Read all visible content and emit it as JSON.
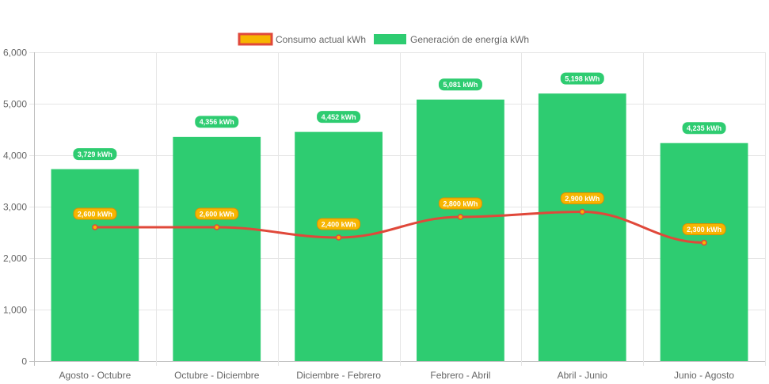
{
  "chart_data": {
    "type": "bar",
    "title": "",
    "xlabel": "",
    "ylabel": "",
    "ylim": [
      0,
      6000
    ],
    "y_ticks": [
      "0",
      "1,000",
      "2,000",
      "3,000",
      "4,000",
      "5,000",
      "6,000"
    ],
    "grid": true,
    "legend_position": "top-center",
    "categories": [
      "Agosto - Octubre",
      "Octubre - Diciembre",
      "Diciembre - Febrero",
      "Febrero - Abril",
      "Abril - Junio",
      "Junio - Agosto"
    ],
    "series": [
      {
        "name": "Consumo actual kWh",
        "type": "line",
        "values": [
          2600,
          2600,
          2400,
          2800,
          2900,
          2300
        ],
        "labels": [
          "2,600 kWh",
          "2,600 kWh",
          "2,400 kWh",
          "2,800 kWh",
          "2,900 kWh",
          "2,300 kWh"
        ],
        "color": "#e0483a",
        "point_color": "#f7b500"
      },
      {
        "name": "Generación de energía kWh",
        "type": "bar",
        "values": [
          3729,
          4356,
          4452,
          5081,
          5198,
          4235
        ],
        "labels": [
          "3,729 kWh",
          "4,356 kWh",
          "4,452 kWh",
          "5,081 kWh",
          "5,198 kWh",
          "4,235 kWh"
        ],
        "color": "#2ecc71"
      }
    ]
  }
}
